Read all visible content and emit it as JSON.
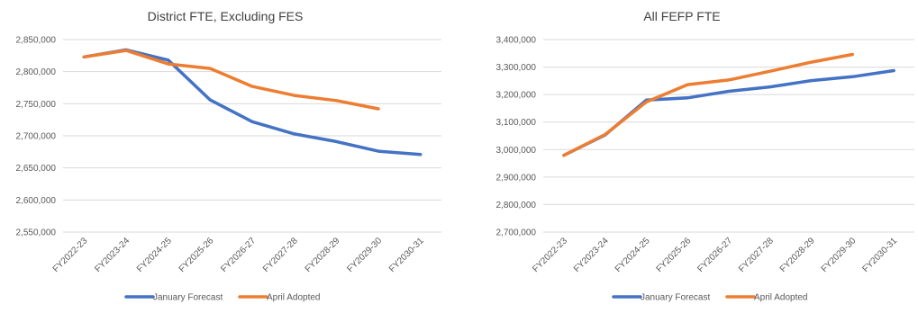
{
  "colors": {
    "january": "#4472C4",
    "april": "#ED7D31",
    "grid": "#D9D9D9",
    "text": "#595959",
    "title": "#404040"
  },
  "chart_data": [
    {
      "type": "line",
      "title": "District FTE, Excluding FES",
      "categories": [
        "FY2022-23",
        "FY2023-24",
        "FY2024-25",
        "FY2025-26",
        "FY2026-27",
        "FY2027-28",
        "FY2028-29",
        "FY2029-30",
        "FY2030-31"
      ],
      "ylim": [
        2550000,
        2850000
      ],
      "yticks": [
        2550000,
        2600000,
        2650000,
        2700000,
        2750000,
        2800000,
        2850000
      ],
      "ytick_labels": [
        "2,550,000",
        "2,600,000",
        "2,650,000",
        "2,700,000",
        "2,750,000",
        "2,800,000",
        "2,850,000"
      ],
      "grid": true,
      "legend_position": "bottom",
      "series": [
        {
          "name": "January Forecast",
          "color_key": "january",
          "values": [
            2823000,
            2834000,
            2818000,
            2756000,
            2722000,
            2703000,
            2691000,
            2676000,
            2671000
          ]
        },
        {
          "name": "April Adopted",
          "color_key": "april",
          "values": [
            2823000,
            2833000,
            2812000,
            2805000,
            2777000,
            2763000,
            2755000,
            2742000,
            null
          ]
        }
      ]
    },
    {
      "type": "line",
      "title": "All FEFP FTE",
      "categories": [
        "FY2022-23",
        "FY2023-24",
        "FY2024-25",
        "FY2025-26",
        "FY2026-27",
        "FY2027-28",
        "FY2028-29",
        "FY2029-30",
        "FY2030-31"
      ],
      "ylim": [
        2700000,
        3400000
      ],
      "yticks": [
        2700000,
        2800000,
        2900000,
        3000000,
        3100000,
        3200000,
        3300000,
        3400000
      ],
      "ytick_labels": [
        "2,700,000",
        "2,800,000",
        "2,900,000",
        "3,000,000",
        "3,100,000",
        "3,200,000",
        "3,300,000",
        "3,400,000"
      ],
      "grid": true,
      "legend_position": "bottom",
      "series": [
        {
          "name": "January Forecast",
          "color_key": "january",
          "values": [
            2979000,
            3053000,
            3180000,
            3188000,
            3212000,
            3228000,
            3251000,
            3265000,
            3287000
          ]
        },
        {
          "name": "April Adopted",
          "color_key": "april",
          "values": [
            2979000,
            3055000,
            3173000,
            3236000,
            3253000,
            3285000,
            3318000,
            3346000,
            null
          ]
        }
      ]
    }
  ]
}
